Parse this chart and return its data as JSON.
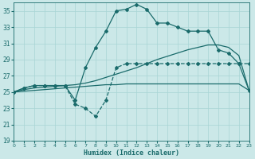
{
  "background_color": "#cbe8e8",
  "grid_color": "#a8d5d5",
  "line_color": "#1a6b6b",
  "xlabel": "Humidex (Indice chaleur)",
  "ylim": [
    19,
    36
  ],
  "xlim": [
    0,
    23
  ],
  "yticks": [
    19,
    21,
    23,
    25,
    27,
    29,
    31,
    33,
    35
  ],
  "xticks": [
    0,
    1,
    2,
    3,
    4,
    5,
    6,
    7,
    8,
    9,
    10,
    11,
    12,
    13,
    14,
    15,
    16,
    17,
    18,
    19,
    20,
    21,
    22,
    23
  ],
  "curve1_x": [
    0,
    1,
    2,
    3,
    4,
    5,
    6,
    7,
    8,
    9,
    10,
    11,
    12,
    13,
    14,
    15,
    16,
    17,
    18,
    19,
    20,
    21,
    22,
    23
  ],
  "curve1_y": [
    25.0,
    25.5,
    25.8,
    25.8,
    25.8,
    25.8,
    24.0,
    28.0,
    30.5,
    32.5,
    35.0,
    35.2,
    35.8,
    35.2,
    33.5,
    33.5,
    33.0,
    32.5,
    32.5,
    32.5,
    30.2,
    29.8,
    28.5,
    25.2
  ],
  "curve2_x": [
    0,
    1,
    2,
    3,
    4,
    5,
    6,
    7,
    8,
    9,
    10,
    11,
    12,
    13,
    14,
    15,
    16,
    17,
    18,
    19,
    20,
    21,
    22,
    23
  ],
  "curve2_y": [
    25.0,
    25.5,
    25.8,
    25.8,
    25.8,
    25.8,
    23.5,
    23.0,
    22.0,
    24.0,
    28.0,
    28.5,
    28.5,
    28.5,
    28.5,
    28.5,
    28.5,
    28.5,
    28.5,
    28.5,
    28.5,
    28.5,
    28.5,
    28.5
  ],
  "curve3_x": [
    0,
    1,
    2,
    3,
    4,
    5,
    6,
    7,
    8,
    9,
    10,
    11,
    12,
    13,
    14,
    15,
    16,
    17,
    18,
    19,
    20,
    21,
    22,
    23
  ],
  "curve3_y": [
    25.0,
    25.3,
    25.5,
    25.6,
    25.7,
    25.8,
    25.9,
    26.1,
    26.4,
    26.8,
    27.2,
    27.6,
    28.0,
    28.5,
    29.0,
    29.4,
    29.8,
    30.2,
    30.5,
    30.8,
    30.8,
    30.5,
    29.5,
    25.2
  ],
  "curve4_x": [
    0,
    1,
    2,
    3,
    4,
    5,
    6,
    7,
    8,
    9,
    10,
    11,
    12,
    13,
    14,
    15,
    16,
    17,
    18,
    19,
    20,
    21,
    22,
    23
  ],
  "curve4_y": [
    25.0,
    25.1,
    25.2,
    25.3,
    25.4,
    25.5,
    25.6,
    25.7,
    25.8,
    25.9,
    25.9,
    26.0,
    26.0,
    26.0,
    26.0,
    26.0,
    26.0,
    26.0,
    26.0,
    26.0,
    26.0,
    26.0,
    26.0,
    25.2
  ]
}
